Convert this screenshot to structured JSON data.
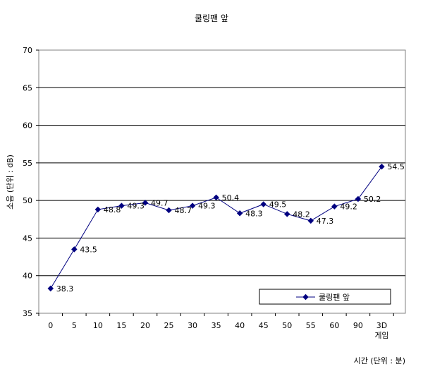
{
  "chart_data": {
    "type": "line",
    "title": "쿨링팬 앞",
    "ylabel": "소음 (단위 : dB)",
    "xlabel": "시간 (단위 : 분)",
    "categories": [
      "0",
      "5",
      "10",
      "15",
      "20",
      "25",
      "30",
      "35",
      "40",
      "45",
      "50",
      "55",
      "60",
      "90",
      "3D\n게임"
    ],
    "series": [
      {
        "name": "쿨링팬 앞",
        "values": [
          38.3,
          43.5,
          48.8,
          49.3,
          49.7,
          48.7,
          49.3,
          50.4,
          48.3,
          49.5,
          48.2,
          47.3,
          49.2,
          50.2,
          54.5
        ]
      }
    ],
    "data_labels": [
      "38.3",
      "43.5",
      "48.8",
      "49.3",
      "49.7",
      "48.7",
      "49.3",
      "50.4",
      "48.3",
      "49.5",
      "48.2",
      "47.3",
      "49.2",
      "50.2",
      "54.5"
    ],
    "ylim": [
      35,
      70
    ],
    "yticks": [
      "35",
      "40",
      "45",
      "50",
      "55",
      "60",
      "65",
      "70"
    ],
    "grid": true,
    "legend": {
      "position": "lower-right",
      "label": "쿨링팬 앞"
    },
    "line_color": "#000080"
  }
}
